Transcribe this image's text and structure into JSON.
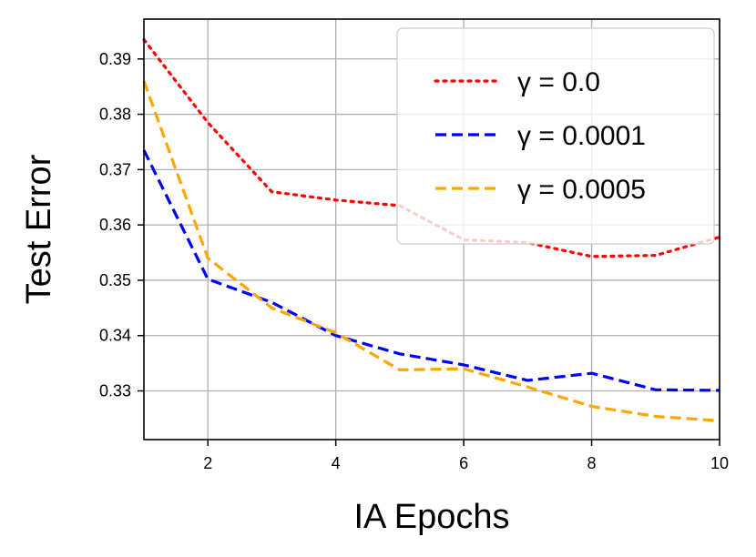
{
  "chart_data": {
    "type": "line",
    "title": "",
    "xlabel": "IA Epochs",
    "ylabel": "Test Error",
    "xlim": [
      1,
      10
    ],
    "ylim": [
      0.3212,
      0.3972
    ],
    "x_ticks": [
      2,
      4,
      6,
      8,
      10
    ],
    "y_ticks": [
      0.33,
      0.34,
      0.35,
      0.36,
      0.37,
      0.38,
      0.39
    ],
    "y_tick_labels": [
      "0.33",
      "0.34",
      "0.35",
      "0.36",
      "0.37",
      "0.38",
      "0.39"
    ],
    "grid": true,
    "legend_position": "top-right",
    "x": [
      1,
      2,
      3,
      4,
      5,
      6,
      7,
      8,
      9,
      10
    ],
    "series": [
      {
        "name": "γ = 0.0",
        "color": "#ff0000",
        "dash": "dotted",
        "values": [
          0.3935,
          0.3785,
          0.366,
          0.3645,
          0.3635,
          0.3573,
          0.3568,
          0.3543,
          0.3545,
          0.3578
        ]
      },
      {
        "name": "γ = 0.0001",
        "color": "#0000ff",
        "dash": "dashed",
        "values": [
          0.3735,
          0.3502,
          0.346,
          0.34,
          0.3367,
          0.3347,
          0.3319,
          0.3332,
          0.3302,
          0.3301
        ]
      },
      {
        "name": "γ = 0.0005",
        "color": "#ffa500",
        "dash": "dashed",
        "values": [
          0.386,
          0.354,
          0.345,
          0.3405,
          0.3338,
          0.334,
          0.3307,
          0.3272,
          0.3254,
          0.3246
        ]
      }
    ]
  }
}
